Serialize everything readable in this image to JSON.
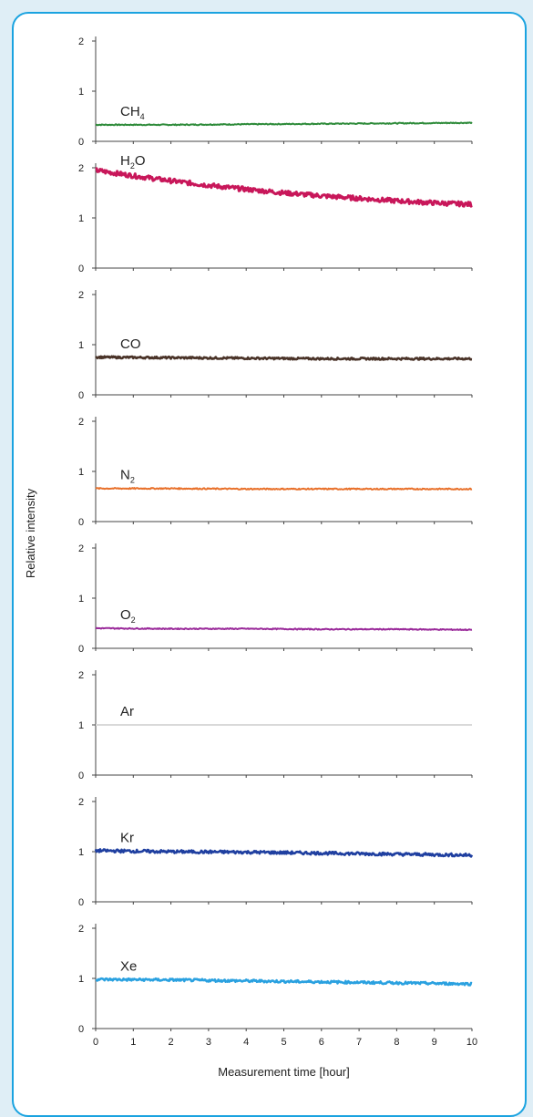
{
  "chart_data": {
    "type": "line",
    "xlabel": "Measurement time [hour]",
    "ylabel": "Relative intensity",
    "x_ticks": [
      "0",
      "1",
      "2",
      "3",
      "4",
      "5",
      "6",
      "7",
      "8",
      "9",
      "10"
    ],
    "y_ticks": [
      "0",
      "1",
      "2"
    ],
    "xlim": [
      0,
      10
    ],
    "ylim": [
      0,
      2.2
    ],
    "panels": [
      {
        "label": "CH₄",
        "base": "CH",
        "sub": "4",
        "color": "#2e8b3a",
        "x": [
          0,
          2,
          4,
          6,
          8,
          10
        ],
        "y": [
          0.33,
          0.33,
          0.34,
          0.35,
          0.36,
          0.37
        ],
        "noise": 0.01
      },
      {
        "label": "H₂O",
        "base": "H",
        "sub": "2",
        "tail": "O",
        "color": "#c8175a",
        "x": [
          0,
          1,
          2,
          3,
          4,
          5,
          6,
          7,
          8,
          9,
          10
        ],
        "y": [
          1.95,
          1.84,
          1.74,
          1.65,
          1.57,
          1.5,
          1.44,
          1.39,
          1.34,
          1.3,
          1.27
        ],
        "noise": 0.045
      },
      {
        "label": "CO",
        "base": "CO",
        "color": "#4a3328",
        "x": [
          0,
          2,
          4,
          6,
          8,
          10
        ],
        "y": [
          0.75,
          0.74,
          0.73,
          0.72,
          0.72,
          0.72
        ],
        "noise": 0.02
      },
      {
        "label": "N₂",
        "base": "N",
        "sub": "2",
        "color": "#e8702a",
        "x": [
          0,
          2,
          4,
          6,
          8,
          10
        ],
        "y": [
          0.66,
          0.66,
          0.65,
          0.65,
          0.65,
          0.65
        ],
        "noise": 0.012
      },
      {
        "label": "O₂",
        "base": "O",
        "sub": "2",
        "color": "#9a2a9a",
        "x": [
          0,
          2,
          4,
          6,
          8,
          10
        ],
        "y": [
          0.4,
          0.39,
          0.39,
          0.38,
          0.38,
          0.37
        ],
        "noise": 0.01
      },
      {
        "label": "Ar",
        "base": "Ar",
        "color": "#d9d9d9",
        "x": [
          0,
          10
        ],
        "y": [
          1.0,
          1.0
        ],
        "noise": 0
      },
      {
        "label": "Kr",
        "base": "Kr",
        "color": "#1f3fa0",
        "x": [
          0,
          2,
          4,
          6,
          8,
          10
        ],
        "y": [
          1.02,
          1.0,
          0.99,
          0.97,
          0.95,
          0.93
        ],
        "noise": 0.03
      },
      {
        "label": "Xe",
        "base": "Xe",
        "color": "#2aa1e0",
        "x": [
          0,
          2,
          4,
          6,
          8,
          10
        ],
        "y": [
          0.98,
          0.97,
          0.95,
          0.93,
          0.91,
          0.89
        ],
        "noise": 0.025
      }
    ]
  },
  "colors": {
    "frame": "#1aa3e0",
    "page_background": "#dfeef6",
    "xe_tick_1": "#2aa1e0"
  }
}
